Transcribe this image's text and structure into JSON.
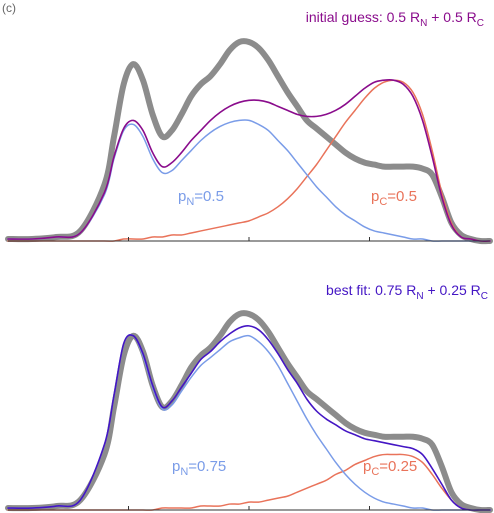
{
  "corner_text": "(c)",
  "colors": {
    "data": "#8c8c8c",
    "pN": "#7a9ce8",
    "pC": "#e9735a",
    "mix_top": "#8a0c8c",
    "mix_bottom": "#4416c4",
    "axis": "#333333"
  },
  "chart_data": [
    {
      "type": "line",
      "title_parts": {
        "prefix": "initial guess:  0.5 R",
        "sub1": "N",
        "middle": " + 0.5 R",
        "sub2": "C"
      },
      "label_pN": {
        "main": "p",
        "sub": "N",
        "value": "=0.5"
      },
      "label_pC": {
        "main": "p",
        "sub": "C",
        "value": "=0.5"
      },
      "xlim": [
        0,
        1
      ],
      "ylim": [
        0,
        1
      ],
      "weights": {
        "pN": 0.5,
        "pC": 0.5
      },
      "series": [
        {
          "name": "data",
          "color": "#8c8c8c",
          "x": [
            0,
            0.05,
            0.1,
            0.15,
            0.2,
            0.22,
            0.24,
            0.26,
            0.28,
            0.3,
            0.32,
            0.34,
            0.36,
            0.38,
            0.4,
            0.42,
            0.44,
            0.46,
            0.48,
            0.5,
            0.52,
            0.54,
            0.56,
            0.58,
            0.6,
            0.62,
            0.64,
            0.66,
            0.68,
            0.7,
            0.72,
            0.74,
            0.76,
            0.78,
            0.8,
            0.82,
            0.84,
            0.86,
            0.88,
            0.9,
            0.92,
            0.94,
            0.96,
            0.98,
            1.0
          ],
          "y": [
            0.01,
            0.01,
            0.02,
            0.05,
            0.28,
            0.52,
            0.78,
            0.88,
            0.8,
            0.63,
            0.52,
            0.55,
            0.63,
            0.72,
            0.78,
            0.82,
            0.88,
            0.95,
            0.99,
            0.99,
            0.96,
            0.9,
            0.82,
            0.74,
            0.67,
            0.6,
            0.56,
            0.52,
            0.48,
            0.44,
            0.41,
            0.39,
            0.38,
            0.37,
            0.37,
            0.37,
            0.37,
            0.36,
            0.33,
            0.22,
            0.09,
            0.03,
            0.01,
            0.0,
            0.0
          ]
        },
        {
          "name": "mixture",
          "color": "#8a0c8c",
          "x": [
            0,
            0.05,
            0.1,
            0.15,
            0.2,
            0.22,
            0.24,
            0.26,
            0.28,
            0.3,
            0.32,
            0.34,
            0.36,
            0.38,
            0.4,
            0.42,
            0.44,
            0.46,
            0.48,
            0.5,
            0.52,
            0.54,
            0.56,
            0.58,
            0.6,
            0.62,
            0.64,
            0.66,
            0.68,
            0.7,
            0.72,
            0.74,
            0.76,
            0.78,
            0.8,
            0.82,
            0.84,
            0.86,
            0.88,
            0.9,
            0.92,
            0.94,
            0.96,
            0.98,
            1.0
          ],
          "y": [
            0.01,
            0.01,
            0.02,
            0.04,
            0.24,
            0.42,
            0.56,
            0.6,
            0.55,
            0.44,
            0.37,
            0.39,
            0.44,
            0.5,
            0.55,
            0.6,
            0.64,
            0.67,
            0.69,
            0.7,
            0.7,
            0.69,
            0.67,
            0.65,
            0.63,
            0.62,
            0.62,
            0.63,
            0.65,
            0.68,
            0.72,
            0.76,
            0.79,
            0.8,
            0.8,
            0.78,
            0.72,
            0.6,
            0.42,
            0.22,
            0.08,
            0.02,
            0.01,
            0.0,
            0.0
          ]
        },
        {
          "name": "pN",
          "color": "#7a9ce8",
          "x": [
            0,
            0.05,
            0.1,
            0.15,
            0.2,
            0.22,
            0.24,
            0.26,
            0.28,
            0.3,
            0.32,
            0.34,
            0.36,
            0.38,
            0.4,
            0.42,
            0.44,
            0.46,
            0.48,
            0.5,
            0.52,
            0.54,
            0.56,
            0.58,
            0.6,
            0.62,
            0.64,
            0.66,
            0.68,
            0.7,
            0.72,
            0.74,
            0.76,
            0.78,
            0.8,
            0.82,
            0.84,
            0.86,
            0.88,
            0.9,
            0.92,
            0.94,
            0.96,
            0.98,
            1.0
          ],
          "y": [
            0.01,
            0.01,
            0.02,
            0.04,
            0.23,
            0.41,
            0.55,
            0.58,
            0.52,
            0.41,
            0.34,
            0.35,
            0.4,
            0.45,
            0.5,
            0.54,
            0.57,
            0.59,
            0.6,
            0.6,
            0.58,
            0.55,
            0.5,
            0.45,
            0.39,
            0.33,
            0.27,
            0.22,
            0.17,
            0.13,
            0.1,
            0.07,
            0.05,
            0.04,
            0.03,
            0.02,
            0.01,
            0.01,
            0.0,
            0.0,
            0.0,
            0.0,
            0.0,
            0.0,
            0.0
          ]
        },
        {
          "name": "pC",
          "color": "#e9735a",
          "x": [
            0,
            0.05,
            0.1,
            0.15,
            0.2,
            0.22,
            0.24,
            0.26,
            0.28,
            0.3,
            0.32,
            0.34,
            0.36,
            0.38,
            0.4,
            0.42,
            0.44,
            0.46,
            0.48,
            0.5,
            0.52,
            0.54,
            0.56,
            0.58,
            0.6,
            0.62,
            0.64,
            0.66,
            0.68,
            0.7,
            0.72,
            0.74,
            0.76,
            0.78,
            0.8,
            0.82,
            0.84,
            0.86,
            0.88,
            0.9,
            0.92,
            0.94,
            0.96,
            0.98,
            1.0
          ],
          "y": [
            0.0,
            0.0,
            0.0,
            0.0,
            0.0,
            0.0,
            0.01,
            0.01,
            0.01,
            0.02,
            0.02,
            0.03,
            0.03,
            0.04,
            0.05,
            0.06,
            0.07,
            0.08,
            0.09,
            0.1,
            0.12,
            0.14,
            0.17,
            0.21,
            0.26,
            0.32,
            0.38,
            0.45,
            0.52,
            0.59,
            0.65,
            0.71,
            0.76,
            0.79,
            0.8,
            0.79,
            0.74,
            0.63,
            0.45,
            0.24,
            0.09,
            0.02,
            0.01,
            0.0,
            0.0
          ]
        }
      ]
    },
    {
      "type": "line",
      "title_parts": {
        "prefix": "best fit: 0.75 R",
        "sub1": "N",
        "middle": " + 0.25 R",
        "sub2": "C"
      },
      "label_pN": {
        "main": "p",
        "sub": "N",
        "value": "=0.75"
      },
      "label_pC": {
        "main": "p",
        "sub": "C",
        "value": "=0.25"
      },
      "xlim": [
        0,
        1
      ],
      "ylim": [
        0,
        1
      ],
      "weights": {
        "pN": 0.75,
        "pC": 0.25
      },
      "series": [
        {
          "name": "data",
          "color": "#8c8c8c",
          "x": [
            0,
            0.05,
            0.1,
            0.15,
            0.2,
            0.22,
            0.24,
            0.26,
            0.28,
            0.3,
            0.32,
            0.34,
            0.36,
            0.38,
            0.4,
            0.42,
            0.44,
            0.46,
            0.48,
            0.5,
            0.52,
            0.54,
            0.56,
            0.58,
            0.6,
            0.62,
            0.64,
            0.66,
            0.68,
            0.7,
            0.72,
            0.74,
            0.76,
            0.78,
            0.8,
            0.82,
            0.84,
            0.86,
            0.88,
            0.9,
            0.92,
            0.94,
            0.96,
            0.98,
            1.0
          ],
          "y": [
            0.01,
            0.01,
            0.02,
            0.05,
            0.28,
            0.52,
            0.78,
            0.88,
            0.8,
            0.63,
            0.52,
            0.55,
            0.63,
            0.72,
            0.78,
            0.82,
            0.88,
            0.95,
            0.99,
            0.99,
            0.96,
            0.9,
            0.82,
            0.74,
            0.67,
            0.6,
            0.56,
            0.52,
            0.48,
            0.44,
            0.41,
            0.39,
            0.38,
            0.37,
            0.37,
            0.37,
            0.37,
            0.36,
            0.33,
            0.22,
            0.09,
            0.03,
            0.01,
            0.0,
            0.0
          ]
        },
        {
          "name": "mixture",
          "color": "#4416c4",
          "x": [
            0,
            0.05,
            0.1,
            0.15,
            0.2,
            0.22,
            0.24,
            0.26,
            0.28,
            0.3,
            0.32,
            0.34,
            0.36,
            0.38,
            0.4,
            0.42,
            0.44,
            0.46,
            0.48,
            0.5,
            0.52,
            0.54,
            0.56,
            0.58,
            0.6,
            0.62,
            0.64,
            0.66,
            0.68,
            0.7,
            0.72,
            0.74,
            0.76,
            0.78,
            0.8,
            0.82,
            0.84,
            0.86,
            0.88,
            0.9,
            0.92,
            0.94,
            0.96,
            0.98,
            1.0
          ],
          "y": [
            0.01,
            0.01,
            0.02,
            0.05,
            0.33,
            0.58,
            0.84,
            0.88,
            0.79,
            0.63,
            0.52,
            0.55,
            0.62,
            0.69,
            0.76,
            0.8,
            0.85,
            0.89,
            0.92,
            0.93,
            0.91,
            0.86,
            0.79,
            0.71,
            0.64,
            0.56,
            0.5,
            0.46,
            0.43,
            0.4,
            0.38,
            0.36,
            0.35,
            0.34,
            0.33,
            0.32,
            0.31,
            0.28,
            0.21,
            0.13,
            0.05,
            0.01,
            0.0,
            0.0,
            0.0
          ]
        },
        {
          "name": "pN",
          "color": "#7a9ce8",
          "x": [
            0,
            0.05,
            0.1,
            0.15,
            0.2,
            0.22,
            0.24,
            0.26,
            0.28,
            0.3,
            0.32,
            0.34,
            0.36,
            0.38,
            0.4,
            0.42,
            0.44,
            0.46,
            0.48,
            0.5,
            0.52,
            0.54,
            0.56,
            0.58,
            0.6,
            0.62,
            0.64,
            0.66,
            0.68,
            0.7,
            0.72,
            0.74,
            0.76,
            0.78,
            0.8,
            0.82,
            0.84,
            0.86,
            0.88,
            0.9,
            0.92,
            0.94,
            0.96,
            0.98,
            1.0
          ],
          "y": [
            0.01,
            0.01,
            0.02,
            0.05,
            0.33,
            0.58,
            0.84,
            0.88,
            0.78,
            0.62,
            0.51,
            0.53,
            0.6,
            0.67,
            0.73,
            0.77,
            0.81,
            0.85,
            0.87,
            0.88,
            0.85,
            0.8,
            0.73,
            0.64,
            0.55,
            0.46,
            0.38,
            0.31,
            0.24,
            0.18,
            0.13,
            0.09,
            0.06,
            0.04,
            0.03,
            0.02,
            0.01,
            0.01,
            0.0,
            0.0,
            0.0,
            0.0,
            0.0,
            0.0,
            0.0
          ]
        },
        {
          "name": "pC",
          "color": "#e9735a",
          "x": [
            0,
            0.05,
            0.1,
            0.15,
            0.2,
            0.22,
            0.24,
            0.26,
            0.28,
            0.3,
            0.32,
            0.34,
            0.36,
            0.38,
            0.4,
            0.42,
            0.44,
            0.46,
            0.48,
            0.5,
            0.52,
            0.54,
            0.56,
            0.58,
            0.6,
            0.62,
            0.64,
            0.66,
            0.68,
            0.7,
            0.72,
            0.74,
            0.76,
            0.78,
            0.8,
            0.82,
            0.84,
            0.86,
            0.88,
            0.9,
            0.92,
            0.94,
            0.96,
            0.98,
            1.0
          ],
          "y": [
            0.0,
            0.0,
            0.0,
            0.0,
            0.0,
            0.0,
            0.0,
            0.0,
            0.0,
            0.0,
            0.01,
            0.01,
            0.01,
            0.01,
            0.02,
            0.02,
            0.02,
            0.03,
            0.03,
            0.04,
            0.04,
            0.05,
            0.06,
            0.07,
            0.09,
            0.11,
            0.13,
            0.15,
            0.18,
            0.2,
            0.23,
            0.25,
            0.27,
            0.28,
            0.28,
            0.28,
            0.27,
            0.24,
            0.18,
            0.11,
            0.05,
            0.01,
            0.0,
            0.0,
            0.0
          ]
        }
      ]
    }
  ]
}
